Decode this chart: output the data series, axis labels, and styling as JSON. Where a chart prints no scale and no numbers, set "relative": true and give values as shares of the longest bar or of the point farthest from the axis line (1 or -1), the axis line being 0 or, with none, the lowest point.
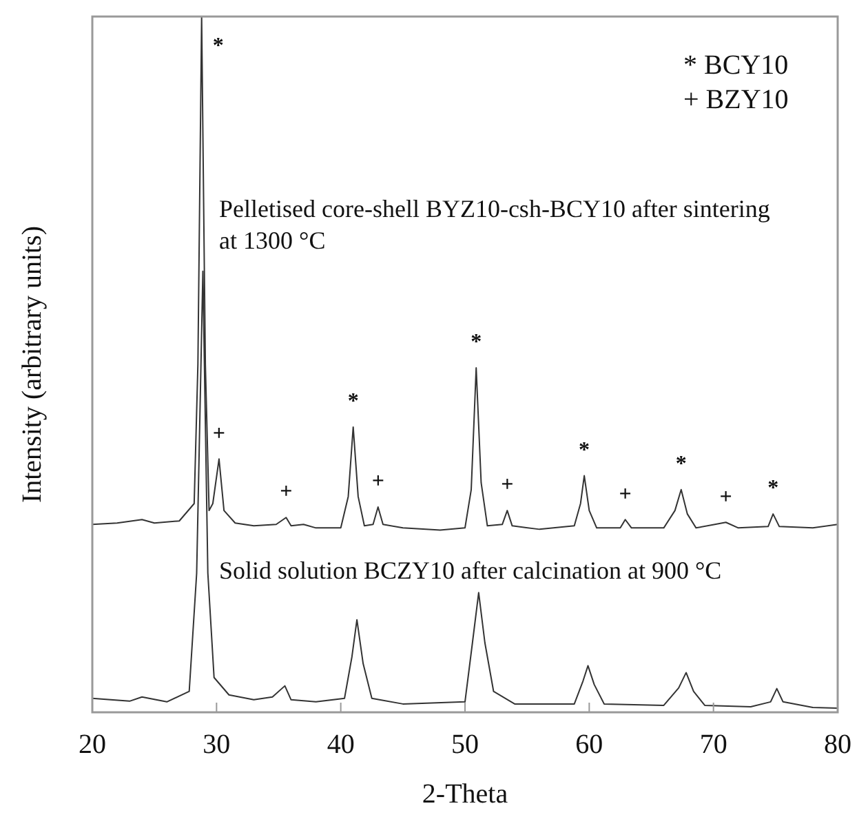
{
  "chart_data": {
    "type": "line",
    "xlabel": "2-Theta",
    "ylabel": "Intensity (arbitrary units)",
    "relative": true,
    "xlim": [
      20,
      80
    ],
    "xticks": [
      20,
      30,
      40,
      50,
      60,
      70,
      80
    ],
    "marker": "none",
    "line_style": "solid",
    "legend": false,
    "series": [
      {
        "name": "Pelletised core-shell BYZ10-csh-BCY10 after sintering at 1300 °C",
        "color": "#333333",
        "x": [
          20,
          22,
          24,
          25,
          27,
          28.2,
          28.5,
          28.8,
          29.1,
          29.4,
          29.7,
          30.2,
          30.6,
          31.5,
          33,
          34.8,
          35.6,
          36,
          37,
          38,
          40,
          40.6,
          41.0,
          41.4,
          41.9,
          42.6,
          43.0,
          43.4,
          45,
          48,
          50,
          50.5,
          50.9,
          51.3,
          51.8,
          53,
          53.4,
          53.8,
          56,
          58.8,
          59.3,
          59.6,
          60,
          60.6,
          62.5,
          62.9,
          63.4,
          66,
          66.9,
          67.4,
          67.9,
          68.6,
          71,
          72,
          74.4,
          74.8,
          75.3,
          78,
          80
        ],
        "values": [
          0.27,
          0.272,
          0.277,
          0.272,
          0.275,
          0.3,
          0.5,
          1.0,
          0.5,
          0.29,
          0.3,
          0.364,
          0.29,
          0.272,
          0.268,
          0.27,
          0.28,
          0.268,
          0.27,
          0.265,
          0.265,
          0.31,
          0.41,
          0.31,
          0.268,
          0.27,
          0.295,
          0.27,
          0.265,
          0.262,
          0.265,
          0.32,
          0.495,
          0.33,
          0.268,
          0.27,
          0.29,
          0.268,
          0.263,
          0.268,
          0.3,
          0.34,
          0.29,
          0.265,
          0.265,
          0.277,
          0.265,
          0.265,
          0.29,
          0.32,
          0.285,
          0.265,
          0.273,
          0.265,
          0.267,
          0.285,
          0.267,
          0.265,
          0.27
        ]
      },
      {
        "name": "Solid solution BCZY10 after calcination at 900 °C",
        "color": "#333333",
        "x": [
          20,
          23,
          24,
          26,
          27.8,
          28.4,
          28.9,
          29.3,
          29.8,
          31,
          33,
          34.5,
          35.5,
          36,
          38,
          40.3,
          40.9,
          41.3,
          41.8,
          42.5,
          45,
          50,
          50.6,
          51.1,
          51.6,
          52.3,
          54,
          58.8,
          59.5,
          59.9,
          60.4,
          61.2,
          66,
          67.2,
          67.8,
          68.4,
          69.3,
          73,
          74.6,
          75.1,
          75.6,
          78,
          80
        ],
        "values": [
          0.02,
          0.016,
          0.022,
          0.015,
          0.03,
          0.2,
          0.634,
          0.2,
          0.05,
          0.025,
          0.018,
          0.022,
          0.038,
          0.018,
          0.015,
          0.02,
          0.08,
          0.133,
          0.07,
          0.02,
          0.012,
          0.015,
          0.1,
          0.172,
          0.1,
          0.03,
          0.012,
          0.012,
          0.045,
          0.067,
          0.04,
          0.012,
          0.01,
          0.035,
          0.057,
          0.03,
          0.01,
          0.008,
          0.015,
          0.034,
          0.015,
          0.007,
          0.006
        ]
      }
    ],
    "annotations": [
      {
        "text": "*",
        "x": 28.8,
        "y": 1.0
      },
      {
        "text": "+",
        "x": 30.2,
        "y": 0.364
      },
      {
        "text": "+",
        "x": 35.6,
        "y": 0.28
      },
      {
        "text": "*",
        "x": 41.0,
        "y": 0.41
      },
      {
        "text": "+",
        "x": 43.0,
        "y": 0.295
      },
      {
        "text": "*",
        "x": 50.9,
        "y": 0.495
      },
      {
        "text": "+",
        "x": 53.4,
        "y": 0.29
      },
      {
        "text": "*",
        "x": 59.6,
        "y": 0.34
      },
      {
        "text": "+",
        "x": 62.9,
        "y": 0.277
      },
      {
        "text": "*",
        "x": 67.4,
        "y": 0.32
      },
      {
        "text": "+",
        "x": 71,
        "y": 0.273
      },
      {
        "text": "*",
        "x": 74.8,
        "y": 0.285
      },
      "* BCY10",
      "+ BZY10"
    ]
  }
}
